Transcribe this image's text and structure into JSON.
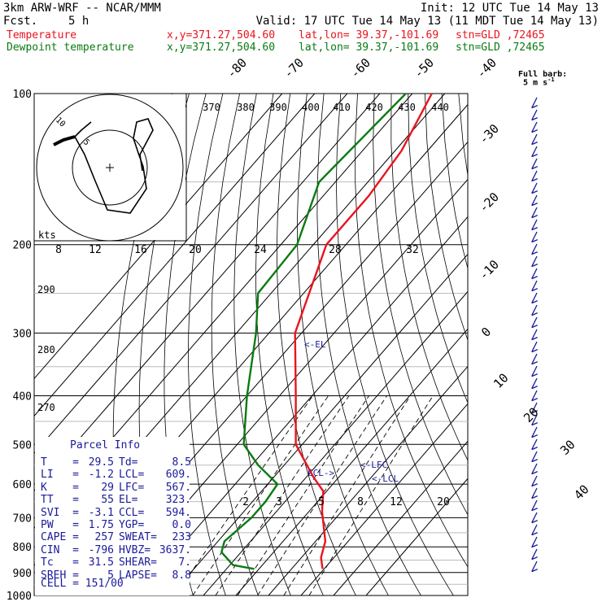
{
  "header": {
    "title_left": "3km ARW-WRF -- NCAR/MMM",
    "init": "Init: 12 UTC Tue 14 May 13",
    "fcst_label": "Fcst.",
    "fcst_value": "5 h",
    "valid": "Valid: 17 UTC Tue 14 May 13 (11 MDT Tue 14 May 13)",
    "temp_label": "Temperature",
    "temp_xy": "x,y=371.27,504.60",
    "temp_latlon": "lat,lon= 39.37,-101.69",
    "temp_stn": "stn=GLD ,72465",
    "dew_label": "Dewpoint temperature",
    "dew_xy": "x,y=371.27,504.60",
    "dew_latlon": "lat,lon= 39.37,-101.69",
    "dew_stn": "stn=GLD ,72465"
  },
  "colors": {
    "temperature": "#e8141d",
    "dewpoint": "#0b7a12",
    "barbs": "#1a1a9a",
    "grid": "#000000",
    "panel_text": "#1a1a9a"
  },
  "barb_legend": {
    "title": "Full barb:",
    "value": "5 m s",
    "sup": "-1"
  },
  "hodograph": {
    "axis_label": "kts",
    "ring_labels": [
      "10",
      "5"
    ]
  },
  "annotations": {
    "el": "<-EL",
    "lfc": "<-LFC",
    "lcl": "<-LCL",
    "ccl": "CCL->"
  },
  "parcel_info": {
    "title": "Parcel Info",
    "rows": [
      {
        "k1": "T",
        "v1": "29.5",
        "k2": "Td",
        "v2": "8.5"
      },
      {
        "k1": "LI",
        "v1": "-1.2",
        "k2": "LCL",
        "v2": "609."
      },
      {
        "k1": "K",
        "v1": "29",
        "k2": "LFC",
        "v2": "567."
      },
      {
        "k1": "TT",
        "v1": "55",
        "k2": "EL",
        "v2": "323."
      },
      {
        "k1": "SVI",
        "v1": "-3.1",
        "k2": "CCL",
        "v2": "594."
      },
      {
        "k1": "PW",
        "v1": "1.75",
        "k2": "YGP",
        "v2": "0.0"
      },
      {
        "k1": "CAPE",
        "v1": "257",
        "k2": "SWEAT",
        "v2": "233"
      },
      {
        "k1": "CIN",
        "v1": "-796",
        "k2": "HVBZ",
        "v2": "3637."
      },
      {
        "k1": "Tc",
        "v1": "31.5",
        "k2": "SHEAR",
        "v2": "7."
      },
      {
        "k1": "SREH",
        "v1": "5",
        "k2": "LAPSE",
        "v2": "8.8"
      }
    ],
    "cell": "CELL = 151/00"
  },
  "chart_data": {
    "type": "line",
    "title": "",
    "xlabel": "",
    "ylabel": "",
    "y_scale": "log-pressure",
    "ylim": [
      1000,
      100
    ],
    "pressure_labels": [
      "100",
      "200",
      "300",
      "400",
      "500",
      "600",
      "700",
      "800",
      "900",
      "1000"
    ],
    "temperature_isotherm_labels": [
      "-80",
      "-70",
      "-60",
      "-50",
      "-40",
      "-30",
      "-20",
      "-10",
      "0",
      "10",
      "20",
      "30",
      "40"
    ],
    "theta_labels": [
      "370",
      "380",
      "390",
      "400",
      "410",
      "420",
      "430",
      "440"
    ],
    "theta_side_labels": [
      "290",
      "280",
      "270"
    ],
    "mixing_ratio_labels_top": [
      "8",
      "12",
      "16",
      "20",
      "24",
      "28",
      "32"
    ],
    "mixing_ratio_labels_bottom": [
      "2",
      "3",
      "5",
      "8",
      "12",
      "20"
    ],
    "series": [
      {
        "name": "Temperature",
        "pressure": [
          100,
          130,
          160,
          200,
          300,
          400,
          500,
          580,
          620,
          680,
          780,
          840,
          885
        ],
        "temp": [
          -64,
          -58,
          -56,
          -56,
          -42,
          -25,
          -12,
          2,
          9,
          14,
          23,
          26,
          29.5
        ]
      },
      {
        "name": "Dewpoint temperature",
        "pressure": [
          100,
          150,
          200,
          250,
          300,
          400,
          500,
          550,
          600,
          650,
          700,
          780,
          820,
          870,
          885
        ],
        "temp": [
          -72,
          -75,
          -65,
          -64,
          -54,
          -40,
          -28,
          -18,
          -7,
          -6,
          -6,
          -8,
          -6,
          1,
          8.5
        ]
      }
    ]
  }
}
